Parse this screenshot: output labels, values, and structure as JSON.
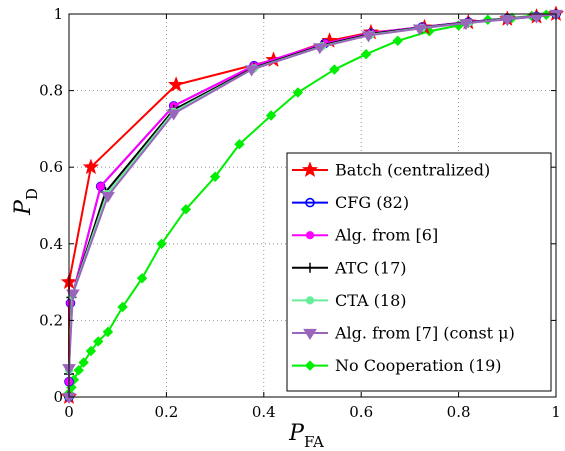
{
  "chart_data": {
    "type": "line",
    "xlabel": {
      "main": "P",
      "sub": "FA"
    },
    "ylabel": {
      "main": "P",
      "sub": "D"
    },
    "xlim": [
      0,
      1
    ],
    "ylim": [
      0,
      1
    ],
    "x_ticks": [
      0,
      0.2,
      0.4,
      0.6,
      0.8,
      1
    ],
    "y_ticks": [
      0,
      0.2,
      0.4,
      0.6,
      0.8,
      1
    ],
    "x_tick_labels": [
      "0",
      "0.2",
      "0.4",
      "0.6",
      "0.8",
      "1"
    ],
    "y_tick_labels": [
      "0",
      "0.2",
      "0.4",
      "0.6",
      "0.8",
      "1"
    ],
    "grid": true,
    "legend_position": "bottom-right",
    "series": [
      {
        "name": "Batch (centralized)",
        "color": "#ff0000",
        "marker": "star",
        "x": [
          0,
          0.0,
          0.045,
          0.22,
          0.42,
          0.535,
          0.62,
          0.73,
          0.82,
          0.9,
          0.96,
          1.0
        ],
        "y": [
          0,
          0.3,
          0.6,
          0.815,
          0.88,
          0.93,
          0.952,
          0.965,
          0.978,
          0.987,
          0.993,
          1.0
        ]
      },
      {
        "name": "CFG (82)",
        "color": "#0000ff",
        "marker": "circle",
        "x": [
          0,
          0.0,
          0.003,
          0.065,
          0.215,
          0.38,
          0.525,
          0.62,
          0.725,
          0.82,
          0.9,
          0.96,
          1.0
        ],
        "y": [
          0,
          0.04,
          0.245,
          0.55,
          0.76,
          0.865,
          0.923,
          0.95,
          0.966,
          0.979,
          0.988,
          0.994,
          1.0
        ]
      },
      {
        "name": "Alg. from [6]",
        "color": "#ff00ff",
        "marker": "dot",
        "x": [
          0,
          0.0,
          0.003,
          0.065,
          0.215,
          0.38,
          0.525,
          0.62,
          0.725,
          0.82,
          0.9,
          0.96,
          1.0
        ],
        "y": [
          0,
          0.04,
          0.245,
          0.55,
          0.76,
          0.865,
          0.923,
          0.95,
          0.966,
          0.979,
          0.988,
          0.994,
          1.0
        ]
      },
      {
        "name": "ATC (17)",
        "color": "#000000",
        "marker": "plus",
        "x": [
          0,
          0.0,
          0.005,
          0.075,
          0.215,
          0.38,
          0.52,
          0.62,
          0.725,
          0.82,
          0.9,
          0.96,
          1.0
        ],
        "y": [
          0,
          0.06,
          0.26,
          0.535,
          0.75,
          0.86,
          0.918,
          0.948,
          0.965,
          0.978,
          0.987,
          0.993,
          1.0
        ]
      },
      {
        "name": "CTA (18)",
        "color": "#66ee99",
        "marker": "dot",
        "x": [
          0,
          0.0,
          0.006,
          0.078,
          0.215,
          0.38,
          0.52,
          0.62,
          0.725,
          0.82,
          0.9,
          0.96,
          1.0
        ],
        "y": [
          0,
          0.07,
          0.265,
          0.53,
          0.745,
          0.858,
          0.916,
          0.946,
          0.964,
          0.977,
          0.987,
          0.993,
          1.0
        ]
      },
      {
        "name": "Alg. from [7] (const μ)",
        "color": "#9966bb",
        "marker": "triangle-down",
        "x": [
          0,
          0.0,
          0.008,
          0.08,
          0.215,
          0.375,
          0.515,
          0.615,
          0.72,
          0.815,
          0.9,
          0.96,
          1.0
        ],
        "y": [
          0,
          0.075,
          0.27,
          0.525,
          0.74,
          0.855,
          0.913,
          0.944,
          0.962,
          0.976,
          0.986,
          0.993,
          1.0
        ]
      },
      {
        "name": "No Cooperation (19)",
        "color": "#00ee00",
        "marker": "diamond",
        "x": [
          0,
          0.0,
          0.005,
          0.01,
          0.02,
          0.03,
          0.045,
          0.06,
          0.08,
          0.11,
          0.15,
          0.19,
          0.24,
          0.3,
          0.35,
          0.415,
          0.47,
          0.545,
          0.61,
          0.675,
          0.74,
          0.8,
          0.86,
          0.91,
          0.95,
          0.98,
          1.0
        ],
        "y": [
          0,
          0.01,
          0.025,
          0.045,
          0.07,
          0.09,
          0.12,
          0.145,
          0.17,
          0.235,
          0.31,
          0.4,
          0.49,
          0.575,
          0.66,
          0.735,
          0.795,
          0.855,
          0.895,
          0.93,
          0.955,
          0.97,
          0.985,
          0.99,
          0.995,
          0.998,
          1.0
        ]
      }
    ]
  }
}
